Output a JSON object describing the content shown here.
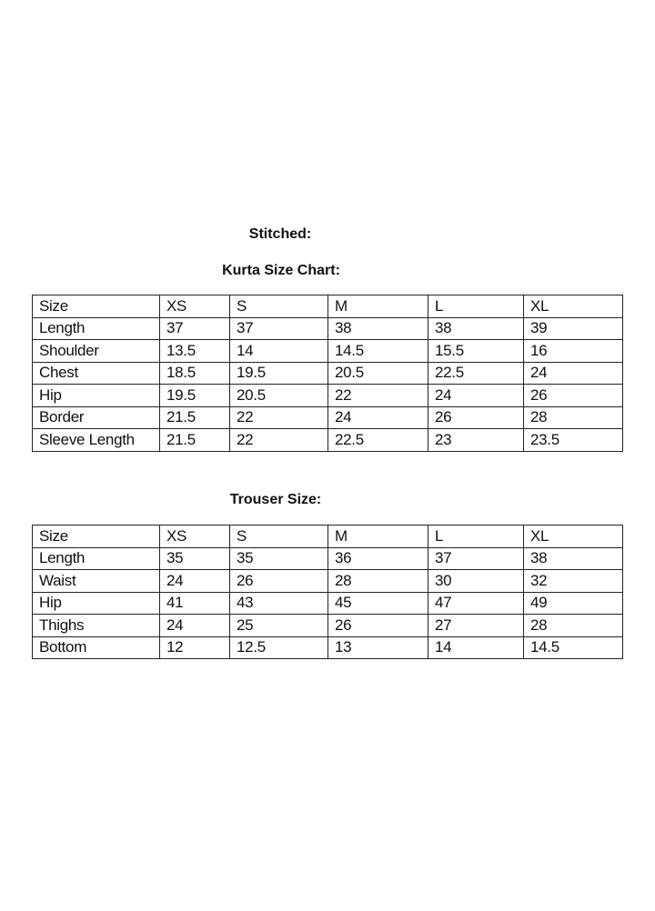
{
  "heading": "Stitched:",
  "kurta": {
    "title": "Kurta Size Chart:",
    "rows": [
      [
        "Size",
        "XS",
        "S",
        "M",
        "L",
        "XL"
      ],
      [
        "Length",
        "37",
        "37",
        "38",
        "38",
        "39"
      ],
      [
        "Shoulder",
        "13.5",
        "14",
        "14.5",
        "15.5",
        "16"
      ],
      [
        "Chest",
        "18.5",
        "19.5",
        "20.5",
        "22.5",
        "24"
      ],
      [
        "Hip",
        "19.5",
        "20.5",
        "22",
        "24",
        "26"
      ],
      [
        "Border",
        "21.5",
        "22",
        "24",
        "26",
        "28"
      ],
      [
        "Sleeve Length",
        "21.5",
        "22",
        "22.5",
        "23",
        "23.5"
      ]
    ]
  },
  "trouser": {
    "title": "Trouser Size:",
    "rows": [
      [
        "Size",
        "XS",
        "S",
        "M",
        "L",
        "XL"
      ],
      [
        "Length",
        "35",
        "35",
        "36",
        "37",
        "38"
      ],
      [
        "Waist",
        "24",
        "26",
        "28",
        "30",
        "32"
      ],
      [
        "Hip",
        "41",
        "43",
        "45",
        "47",
        "49"
      ],
      [
        "Thighs",
        "24",
        "25",
        "26",
        "27",
        "28"
      ],
      [
        "Bottom",
        "12",
        "12.5",
        "13",
        "14",
        "14.5"
      ]
    ]
  }
}
